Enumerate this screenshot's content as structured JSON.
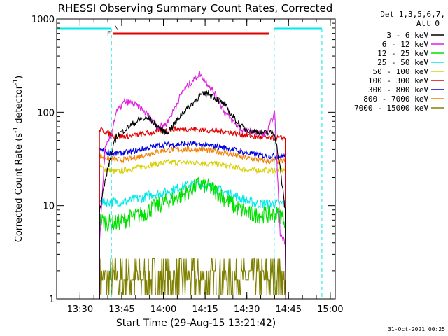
{
  "chart_data": {
    "type": "line",
    "title": "RHESSI Observing Summary Count Rates, Corrected",
    "xlabel": "Start Time (29-Aug-15 13:21:42)",
    "ylabel_main": "Corrected Count Rate (s",
    "ylabel_sup1": "-1",
    "ylabel_mid": " detector",
    "ylabel_sup2": "-1",
    "ylabel_end": ")",
    "yscale": "log",
    "ylim": [
      1,
      1000
    ],
    "xlim_minutes": [
      13.36,
      15.03
    ],
    "x_ticks": [
      "13:30",
      "13:45",
      "14:00",
      "14:15",
      "14:30",
      "14:45",
      "15:00"
    ],
    "y_ticks": [
      "1",
      "10",
      "100",
      "1000"
    ],
    "legend": {
      "placement": "top-right",
      "header_line1": "Det 1,3,5,6,7,",
      "header_line2": "Att 0",
      "entries": [
        {
          "label": "3 - 6 keV",
          "color": "#000000"
        },
        {
          "label": "6 - 12 keV",
          "color": "#e020e0"
        },
        {
          "label": "12 - 25 keV",
          "color": "#00e000"
        },
        {
          "label": "25 - 50 keV",
          "color": "#00e8e8"
        },
        {
          "label": "50 - 100 keV",
          "color": "#d8d000"
        },
        {
          "label": "100 - 300 keV",
          "color": "#e00000"
        },
        {
          "label": "300 - 800 keV",
          "color": "#0000e0"
        },
        {
          "label": "800 - 7000 keV",
          "color": "#f08000"
        },
        {
          "label": "7000 - 15000 keV",
          "color": "#808000"
        }
      ]
    },
    "night_marker_label": "N",
    "flare_marker_label": "F",
    "night_color": "#00e8e8",
    "flare_color": "#e00000",
    "night_intervals": [
      [
        13.0,
        13.688
      ],
      [
        14.664,
        14.95
      ]
    ],
    "flare_interval": [
      13.7,
      14.635
    ],
    "data_start_time": "13:37",
    "data_end_time": "14:44",
    "series": [
      {
        "name": "3 - 6 keV",
        "color": "#000000",
        "t": [
          "13:37",
          "13:40",
          "13:43",
          "13:46",
          "13:49",
          "13:52",
          "13:55",
          "13:58",
          "14:01",
          "14:04",
          "14:07",
          "14:10",
          "14:13",
          "14:16",
          "14:19",
          "14:22",
          "14:25",
          "14:28",
          "14:31",
          "14:34",
          "14:37",
          "14:40",
          "14:42",
          "14:44"
        ],
        "v": [
          9,
          25,
          55,
          65,
          75,
          85,
          85,
          70,
          60,
          75,
          100,
          120,
          150,
          160,
          140,
          120,
          90,
          70,
          64,
          62,
          60,
          60,
          25,
          8
        ]
      },
      {
        "name": "6 - 12 keV",
        "color": "#e020e0",
        "t": [
          "13:37",
          "13:39",
          "13:41",
          "13:43",
          "13:46",
          "13:49",
          "13:52",
          "13:55",
          "13:58",
          "14:01",
          "14:04",
          "14:07",
          "14:10",
          "14:13",
          "14:16",
          "14:19",
          "14:22",
          "14:25",
          "14:28",
          "14:31",
          "14:34",
          "14:37",
          "14:40",
          "14:42",
          "14:44"
        ],
        "v": [
          4,
          40,
          55,
          100,
          130,
          125,
          110,
          90,
          70,
          75,
          110,
          170,
          210,
          260,
          200,
          150,
          100,
          80,
          65,
          62,
          60,
          58,
          100,
          5,
          4
        ]
      },
      {
        "name": "12 - 25 keV",
        "color": "#00e000",
        "t": [
          "13:37",
          "13:40",
          "13:43",
          "13:46",
          "13:49",
          "13:52",
          "13:55",
          "13:58",
          "14:01",
          "14:04",
          "14:07",
          "14:10",
          "14:13",
          "14:16",
          "14:19",
          "14:22",
          "14:25",
          "14:28",
          "14:31",
          "14:34",
          "14:37",
          "14:40",
          "14:42",
          "14:44"
        ],
        "v": [
          7,
          6.5,
          6.5,
          7,
          7.5,
          8,
          9,
          10,
          11,
          12,
          13,
          15,
          17,
          16,
          14,
          12,
          10,
          9,
          8,
          8,
          8,
          8,
          8,
          7
        ]
      },
      {
        "name": "25 - 50 keV",
        "color": "#00e8e8",
        "t": [
          "13:37",
          "13:40",
          "13:43",
          "13:46",
          "13:49",
          "13:52",
          "13:55",
          "13:58",
          "14:01",
          "14:04",
          "14:07",
          "14:10",
          "14:13",
          "14:16",
          "14:19",
          "14:22",
          "14:25",
          "14:28",
          "14:31",
          "14:34",
          "14:37",
          "14:40",
          "14:42",
          "14:44"
        ],
        "v": [
          11,
          11,
          11,
          11,
          11.5,
          12,
          13,
          13.5,
          14,
          15,
          16,
          17,
          17,
          16,
          15,
          14,
          13,
          12,
          11,
          10.5,
          10.5,
          10.5,
          10.5,
          10.5
        ]
      },
      {
        "name": "50 - 100 keV",
        "color": "#d8d000",
        "t": [
          "13:37",
          "13:40",
          "13:43",
          "13:46",
          "13:49",
          "13:52",
          "13:55",
          "13:58",
          "14:01",
          "14:04",
          "14:07",
          "14:10",
          "14:13",
          "14:16",
          "14:19",
          "14:22",
          "14:25",
          "14:28",
          "14:31",
          "14:34",
          "14:37",
          "14:40",
          "14:42",
          "14:44"
        ],
        "v": [
          26,
          24,
          23,
          24,
          25,
          26,
          27,
          28,
          29,
          29,
          29,
          29,
          29,
          28,
          28,
          27,
          26,
          25,
          24,
          24,
          24,
          24,
          24,
          24
        ]
      },
      {
        "name": "100 - 300 keV",
        "color": "#e00000",
        "t": [
          "13:37",
          "13:40",
          "13:43",
          "13:46",
          "13:49",
          "13:52",
          "13:55",
          "13:58",
          "14:01",
          "14:04",
          "14:07",
          "14:10",
          "14:13",
          "14:16",
          "14:19",
          "14:22",
          "14:25",
          "14:28",
          "14:31",
          "14:34",
          "14:37",
          "14:40",
          "14:42",
          "14:44"
        ],
        "v": [
          66,
          60,
          55,
          55,
          56,
          58,
          60,
          62,
          64,
          66,
          66,
          66,
          65,
          64,
          63,
          62,
          60,
          58,
          56,
          54,
          53,
          53,
          53,
          53
        ]
      },
      {
        "name": "300 - 800 keV",
        "color": "#0000e0",
        "t": [
          "13:37",
          "13:40",
          "13:43",
          "13:46",
          "13:49",
          "13:52",
          "13:55",
          "13:58",
          "14:01",
          "14:04",
          "14:07",
          "14:10",
          "14:13",
          "14:16",
          "14:19",
          "14:22",
          "14:25",
          "14:28",
          "14:31",
          "14:34",
          "14:37",
          "14:40",
          "14:42",
          "14:44"
        ],
        "v": [
          40,
          37,
          36,
          37,
          38,
          40,
          42,
          44,
          45,
          45,
          46,
          46,
          45,
          44,
          43,
          42,
          40,
          38,
          36,
          35,
          34,
          34,
          34,
          34
        ]
      },
      {
        "name": "800 - 7000 keV",
        "color": "#f08000",
        "t": [
          "13:37",
          "13:40",
          "13:43",
          "13:46",
          "13:49",
          "13:52",
          "13:55",
          "13:58",
          "14:01",
          "14:04",
          "14:07",
          "14:10",
          "14:13",
          "14:16",
          "14:19",
          "14:22",
          "14:25",
          "14:28",
          "14:31",
          "14:34",
          "14:37",
          "14:40",
          "14:42",
          "14:44"
        ],
        "v": [
          34,
          32,
          31,
          31,
          32,
          34,
          36,
          38,
          39,
          40,
          40,
          40,
          40,
          39,
          38,
          37,
          35,
          33,
          32,
          31,
          30,
          30,
          30,
          30
        ]
      },
      {
        "name": "7000 - 15000 keV",
        "color": "#808000",
        "t": [
          "13:37",
          "13:42",
          "13:48",
          "13:54",
          "14:00",
          "14:06",
          "14:12",
          "14:18",
          "14:24",
          "14:30",
          "14:36",
          "14:40",
          "14:44"
        ],
        "v": [
          2,
          2,
          2,
          2,
          2.5,
          2.5,
          2.5,
          2.5,
          2.5,
          2,
          2,
          2,
          2
        ]
      }
    ]
  },
  "footer": {
    "date_stamp": "31-Oct-2021 00:25"
  }
}
